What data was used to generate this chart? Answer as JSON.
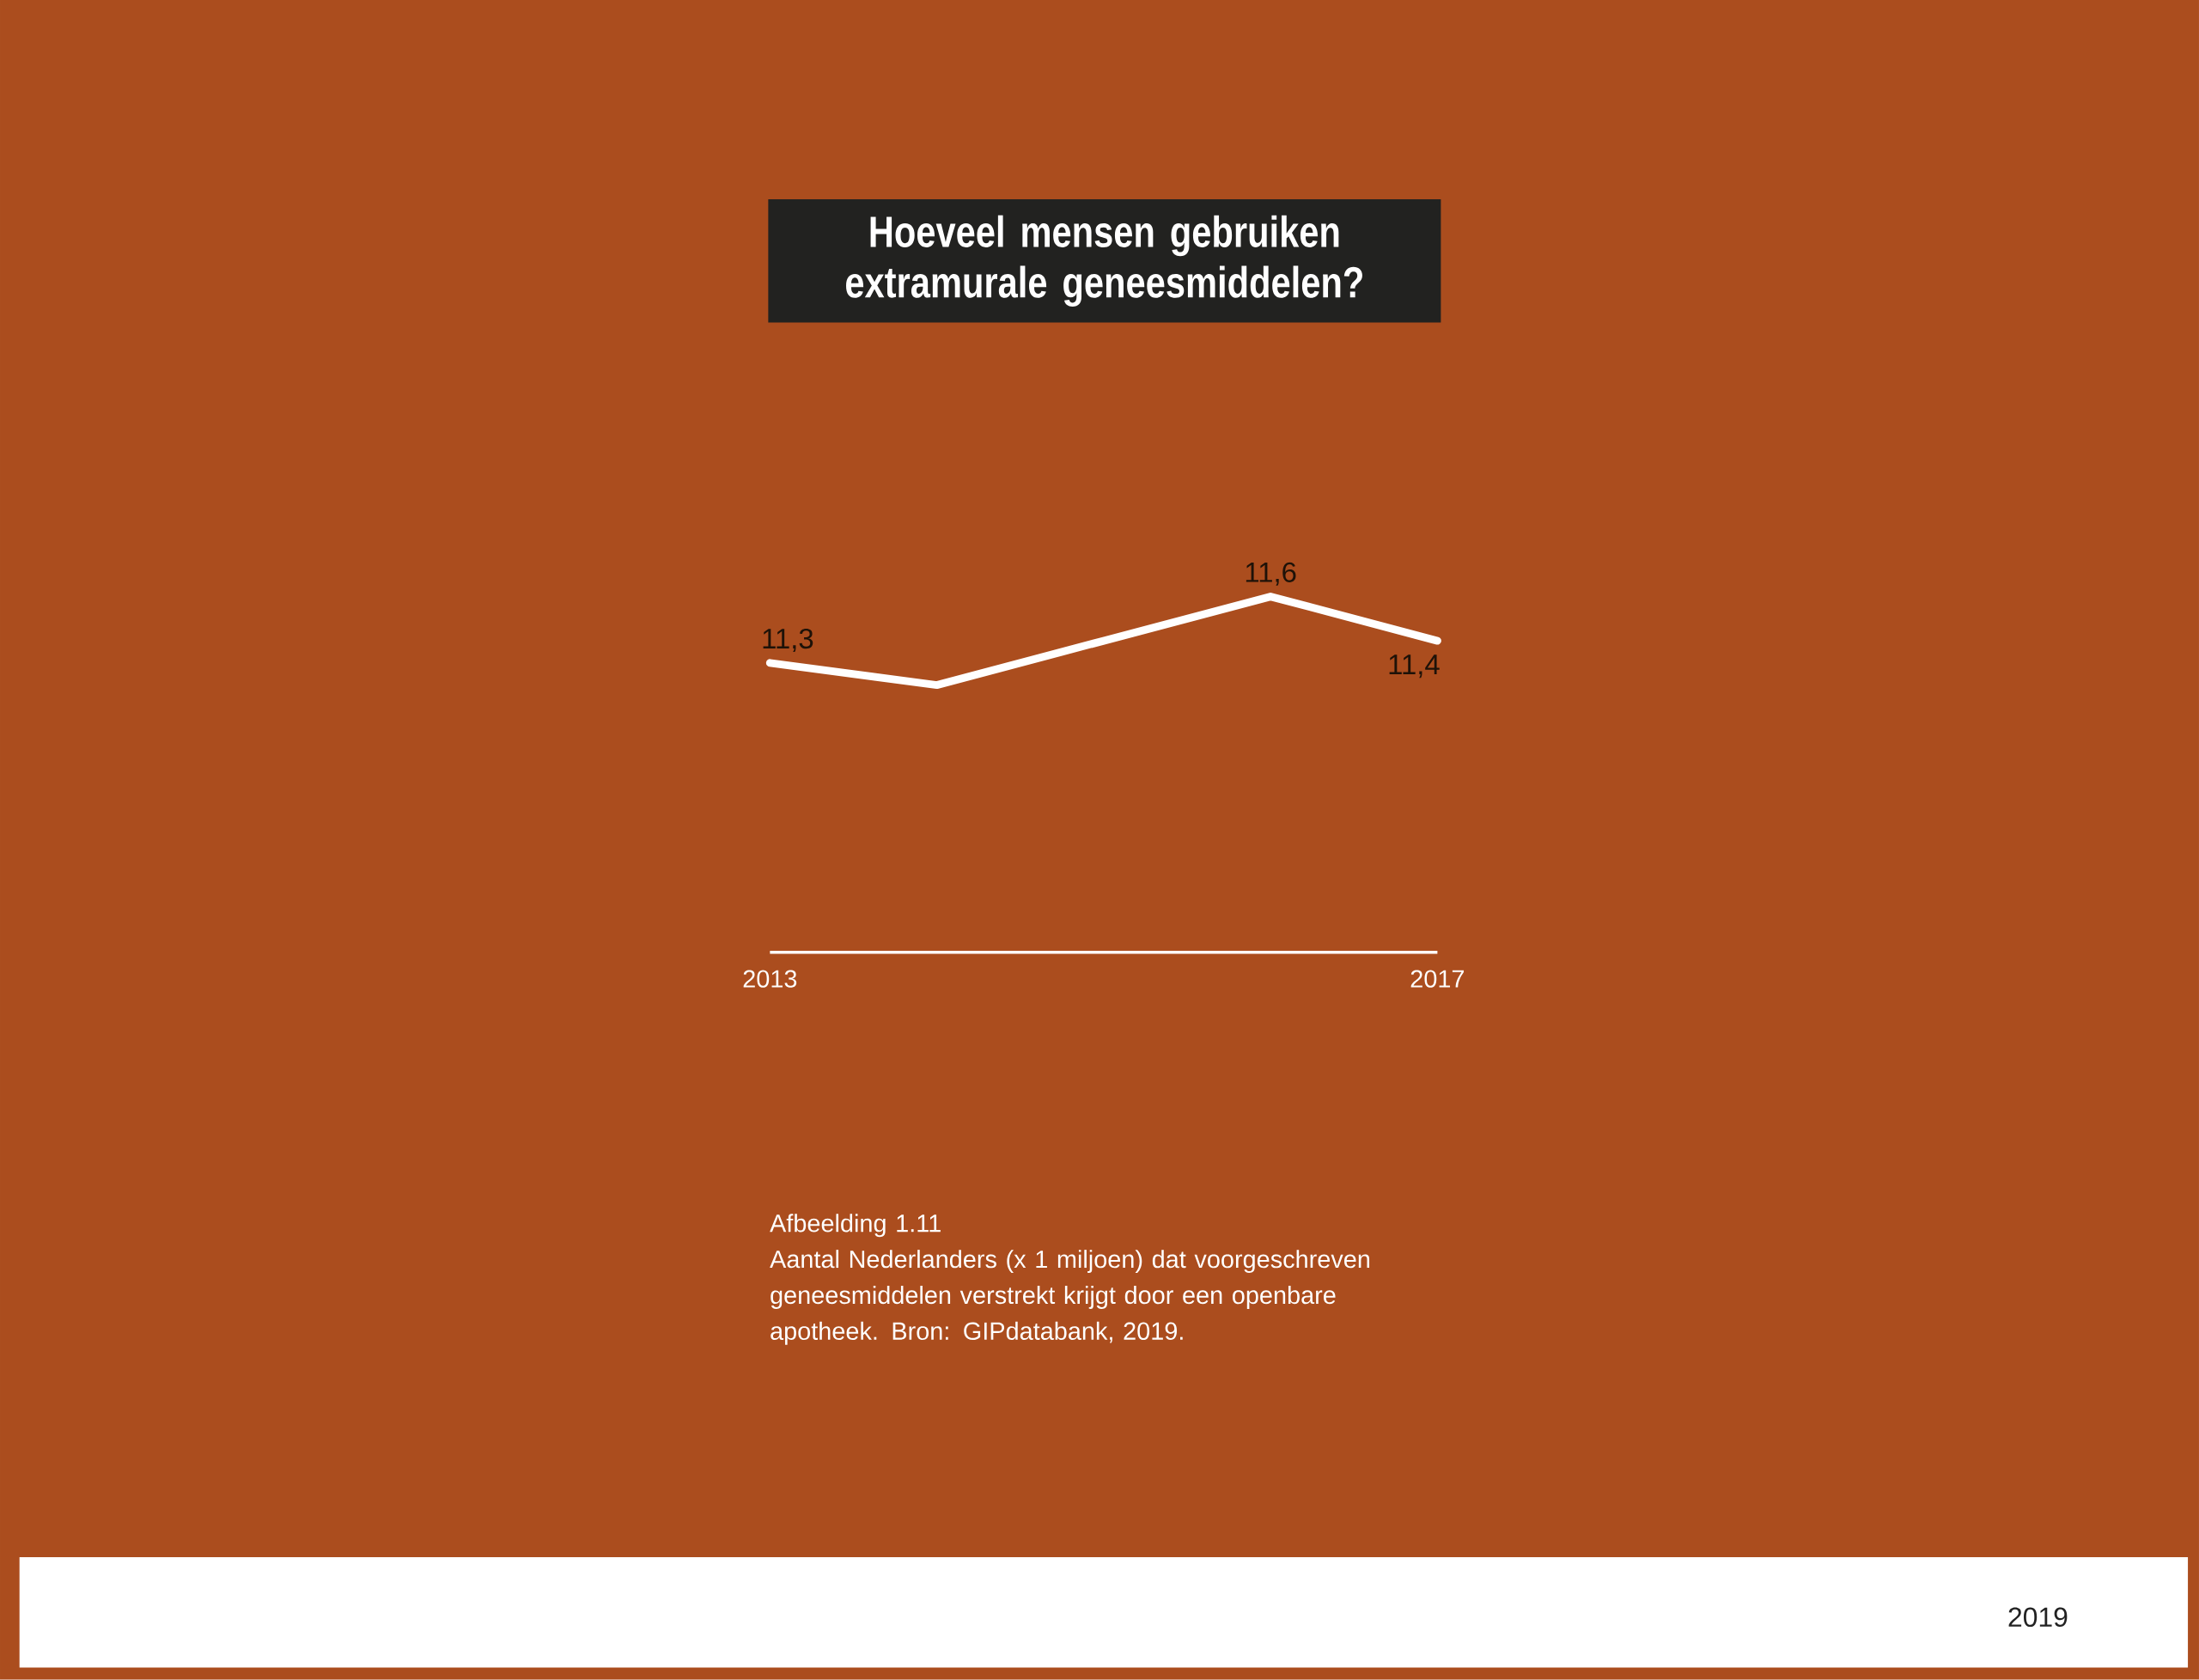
{
  "chart_data": {
    "type": "line",
    "title": "Hoeveel mensen gebruiken extramurale geneesmiddelen?",
    "x": [
      2013,
      2014,
      2015,
      2016,
      2017
    ],
    "values": [
      11.3,
      11.2,
      11.4,
      11.6,
      11.4
    ],
    "value_labels": [
      "11,3",
      null,
      null,
      "11,6",
      "11,4"
    ],
    "color": "#ffffff",
    "xlim": [
      2013,
      2017
    ],
    "xticks": [
      2013,
      2017
    ],
    "tick_labels": "x",
    "annotations": [
      "Afbeelding 1.11",
      "Aantal Nederlanders (x 1 miljoen) dat voorgeschreven geneesmiddelen verstrekt krijgt door een openbare apotheek. Bron: GIPdatabank, 2019.",
      "2019"
    ]
  }
}
